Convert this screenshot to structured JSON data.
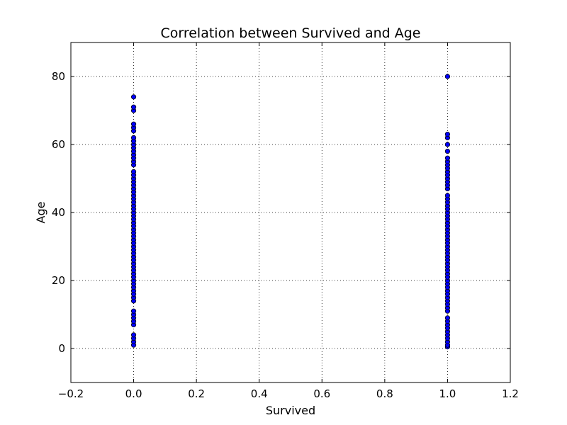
{
  "chart_data": {
    "type": "scatter",
    "title": "Correlation between Survived and Age",
    "xlabel": "Survived",
    "ylabel": "Age",
    "xlim": [
      -0.2,
      1.2
    ],
    "ylim": [
      -10,
      90
    ],
    "x_ticks": [
      -0.2,
      0.0,
      0.2,
      0.4,
      0.6,
      0.8,
      1.0,
      1.2
    ],
    "x_tick_labels": [
      "−0.2",
      "0.0",
      "0.2",
      "0.4",
      "0.6",
      "0.8",
      "1.0",
      "1.2"
    ],
    "y_ticks": [
      0,
      20,
      40,
      60,
      80
    ],
    "y_tick_labels": [
      "0",
      "20",
      "40",
      "60",
      "80"
    ],
    "grid": true,
    "marker_color": "#0000ff",
    "marker_edge_color": "#000000",
    "series": [
      {
        "x": 0,
        "y": [
          1,
          2,
          3,
          4,
          7,
          8,
          9,
          10,
          11,
          14,
          15,
          16,
          17,
          18,
          19,
          20,
          21,
          22,
          23,
          24,
          25,
          26,
          27,
          28,
          29,
          30,
          31,
          32,
          33,
          34,
          35,
          36,
          37,
          38,
          39,
          40,
          41,
          42,
          43,
          44,
          45,
          46,
          47,
          48,
          49,
          50,
          51,
          52,
          54,
          55,
          56,
          57,
          58,
          59,
          60,
          61,
          62,
          64,
          65,
          66,
          70,
          71,
          74
        ]
      },
      {
        "x": 1,
        "y": [
          0.5,
          1,
          2,
          3,
          4,
          5,
          6,
          7,
          8,
          9,
          11,
          12,
          13,
          14,
          15,
          16,
          17,
          18,
          19,
          20,
          21,
          22,
          23,
          24,
          25,
          26,
          27,
          28,
          29,
          30,
          31,
          32,
          33,
          34,
          35,
          36,
          37,
          38,
          39,
          40,
          41,
          42,
          43,
          44,
          45,
          47,
          48,
          49,
          50,
          51,
          52,
          53,
          54,
          55,
          56,
          58,
          60,
          62,
          63,
          80
        ]
      }
    ]
  }
}
